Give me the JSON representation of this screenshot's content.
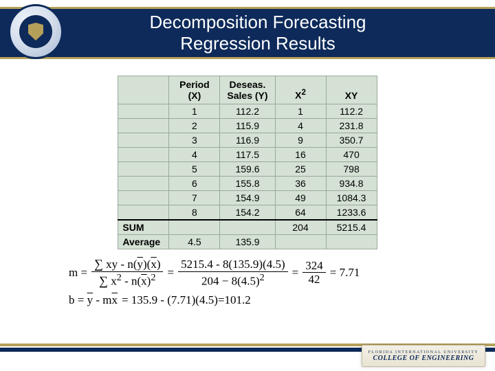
{
  "title_line1": "Decomposition Forecasting",
  "title_line2": "Regression Results",
  "table": {
    "headers": {
      "period_l1": "Period",
      "period_l2": "(X)",
      "deseas_l1": "Deseas.",
      "deseas_l2": "Sales (Y)",
      "x2": "X",
      "x2_sup": "2",
      "xy": "XY"
    },
    "rows": [
      {
        "label": "",
        "x": "1",
        "y": "112.2",
        "x2": "1",
        "xy": "112.2"
      },
      {
        "label": "",
        "x": "2",
        "y": "115.9",
        "x2": "4",
        "xy": "231.8"
      },
      {
        "label": "",
        "x": "3",
        "y": "116.9",
        "x2": "9",
        "xy": "350.7"
      },
      {
        "label": "",
        "x": "4",
        "y": "117.5",
        "x2": "16",
        "xy": "470"
      },
      {
        "label": "",
        "x": "5",
        "y": "159.6",
        "x2": "25",
        "xy": "798"
      },
      {
        "label": "",
        "x": "6",
        "y": "155.8",
        "x2": "36",
        "xy": "934.8"
      },
      {
        "label": "",
        "x": "7",
        "y": "154.9",
        "x2": "49",
        "xy": "1084.3"
      },
      {
        "label": "",
        "x": "8",
        "y": "154.2",
        "x2": "64",
        "xy": "1233.6"
      }
    ],
    "sum_label": "SUM",
    "sum_x2": "204",
    "sum_xy": "5215.4",
    "avg_label": "Average",
    "avg_x": "4.5",
    "avg_y": "135.9"
  },
  "eqm": {
    "num1": "5215.4 - 8(135.9)(4.5)",
    "den1": "204 − 8(4.5)",
    "num2": "324",
    "den2": "42",
    "result": "= 7.71"
  },
  "eqb": {
    "text": "= 135.9 - (7.71)(4.5)=101.2"
  },
  "footer": {
    "l1": "FLORIDA INTERNATIONAL UNIVERSITY",
    "l2": "COLLEGE OF ENGINEERING"
  },
  "style": {
    "header_bg": "#0d2a5a",
    "accent": "#b5a05a",
    "table_bg": "#d4e1d4",
    "table_border": "#9aa99a",
    "title_fontsize": 26,
    "body_fontsize": 14,
    "eq_fontsize": 17
  }
}
